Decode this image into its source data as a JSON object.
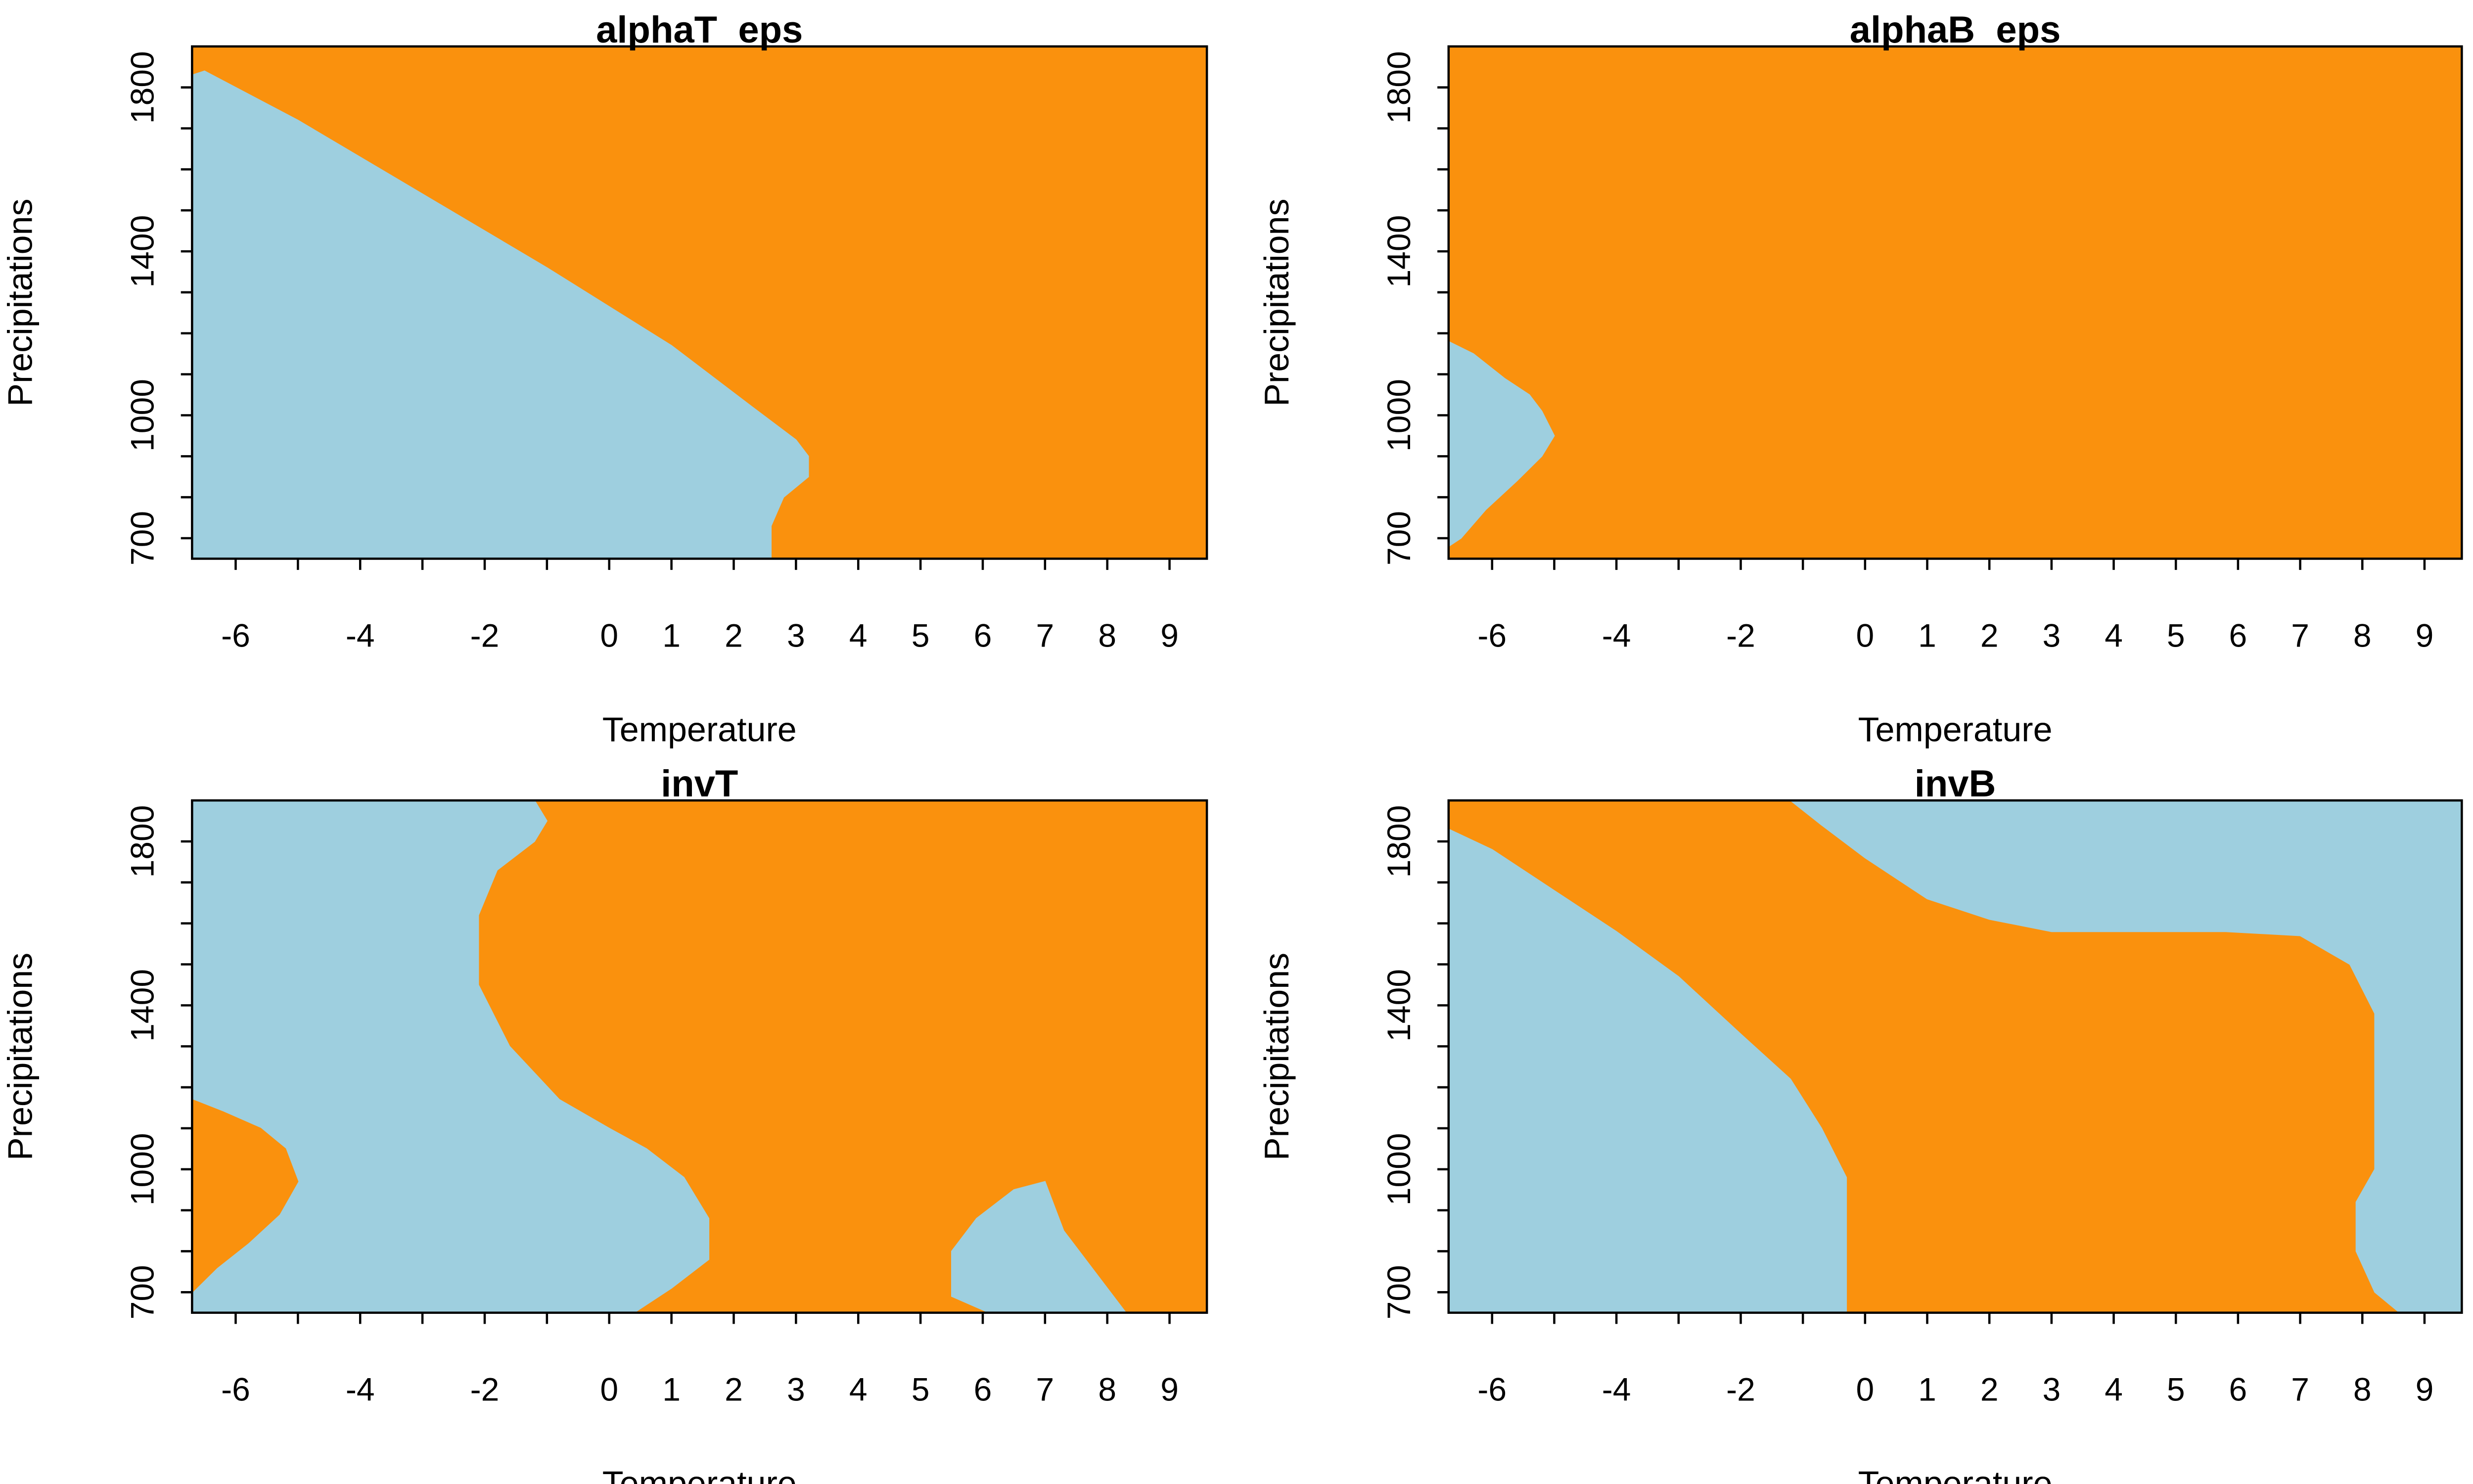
{
  "colors": {
    "light": "#9ecfdf",
    "dark": "#fa910d",
    "axis": "#000000",
    "background": "#ffffff"
  },
  "chart_data": [
    {
      "type": "heatmap",
      "title": "alphaT_eps",
      "xlabel": "Temperature",
      "ylabel": "Precipitations",
      "xlim": [
        -6.7,
        9.6
      ],
      "ylim": [
        650,
        1900
      ],
      "xticks": [
        -6,
        -5,
        -4,
        -3,
        -2,
        -1,
        0,
        1,
        2,
        3,
        4,
        5,
        6,
        7,
        8,
        9
      ],
      "xtick_labels": [
        "-6",
        "",
        "-4",
        "",
        "-2",
        "",
        "0",
        "1",
        "2",
        "3",
        "4",
        "5",
        "6",
        "7",
        "8",
        "9"
      ],
      "yticks": [
        700,
        800,
        900,
        1000,
        1100,
        1200,
        1300,
        1400,
        1500,
        1600,
        1700,
        1800
      ],
      "ytick_labels": [
        "700",
        "",
        "",
        "1000",
        "",
        "",
        "",
        "1400",
        "",
        "",
        "",
        "1800"
      ],
      "class_colors": [
        "#9ecfdf",
        "#fa910d"
      ],
      "regions": [
        {
          "class": 0,
          "polygon": [
            [
              -6.7,
              650
            ],
            [
              -6.7,
              1830
            ],
            [
              -6.5,
              1840
            ],
            [
              -5.0,
              1720
            ],
            [
              -3.0,
              1540
            ],
            [
              -1.0,
              1360
            ],
            [
              1.0,
              1170
            ],
            [
              2.3,
              1020
            ],
            [
              3.0,
              940
            ],
            [
              3.2,
              900
            ],
            [
              3.2,
              850
            ],
            [
              2.8,
              800
            ],
            [
              2.6,
              730
            ],
            [
              2.6,
              650
            ]
          ]
        }
      ]
    },
    {
      "type": "heatmap",
      "title": "alphaB_eps",
      "xlabel": "Temperature",
      "ylabel": "Precipitations",
      "xlim": [
        -6.7,
        9.6
      ],
      "ylim": [
        650,
        1900
      ],
      "xticks": [
        -6,
        -5,
        -4,
        -3,
        -2,
        -1,
        0,
        1,
        2,
        3,
        4,
        5,
        6,
        7,
        8,
        9
      ],
      "xtick_labels": [
        "-6",
        "",
        "-4",
        "",
        "-2",
        "",
        "0",
        "1",
        "2",
        "3",
        "4",
        "5",
        "6",
        "7",
        "8",
        "9"
      ],
      "yticks": [
        700,
        800,
        900,
        1000,
        1100,
        1200,
        1300,
        1400,
        1500,
        1600,
        1700,
        1800
      ],
      "ytick_labels": [
        "700",
        "",
        "",
        "1000",
        "",
        "",
        "",
        "1400",
        "",
        "",
        "",
        "1800"
      ],
      "class_colors": [
        "#9ecfdf",
        "#fa910d"
      ],
      "regions": [
        {
          "class": 0,
          "polygon": [
            [
              -6.7,
              680
            ],
            [
              -6.7,
              1180
            ],
            [
              -6.3,
              1150
            ],
            [
              -5.8,
              1090
            ],
            [
              -5.4,
              1050
            ],
            [
              -5.2,
              1010
            ],
            [
              -5.0,
              950
            ],
            [
              -5.2,
              900
            ],
            [
              -5.6,
              840
            ],
            [
              -6.1,
              770
            ],
            [
              -6.5,
              700
            ]
          ]
        }
      ]
    },
    {
      "type": "heatmap",
      "title": "invT",
      "xlabel": "Temperature",
      "ylabel": "Precipitations",
      "xlim": [
        -6.7,
        9.6
      ],
      "ylim": [
        650,
        1900
      ],
      "xticks": [
        -6,
        -5,
        -4,
        -3,
        -2,
        -1,
        0,
        1,
        2,
        3,
        4,
        5,
        6,
        7,
        8,
        9
      ],
      "xtick_labels": [
        "-6",
        "",
        "-4",
        "",
        "-2",
        "",
        "0",
        "1",
        "2",
        "3",
        "4",
        "5",
        "6",
        "7",
        "8",
        "9"
      ],
      "yticks": [
        700,
        800,
        900,
        1000,
        1100,
        1200,
        1300,
        1400,
        1500,
        1600,
        1700,
        1800
      ],
      "ytick_labels": [
        "700",
        "",
        "",
        "1000",
        "",
        "",
        "",
        "1400",
        "",
        "",
        "",
        "1800"
      ],
      "class_colors": [
        "#9ecfdf",
        "#fa910d"
      ],
      "regions": [
        {
          "class": 0,
          "polygon": [
            [
              -6.7,
              650
            ],
            [
              -6.7,
              1900
            ],
            [
              -1.2,
              1900
            ],
            [
              -1.0,
              1850
            ],
            [
              -1.2,
              1800
            ],
            [
              -1.8,
              1730
            ],
            [
              -2.1,
              1620
            ],
            [
              -2.1,
              1450
            ],
            [
              -1.6,
              1300
            ],
            [
              -0.8,
              1170
            ],
            [
              0.0,
              1100
            ],
            [
              0.6,
              1050
            ],
            [
              1.2,
              980
            ],
            [
              1.6,
              880
            ],
            [
              1.6,
              780
            ],
            [
              1.0,
              710
            ],
            [
              0.4,
              650
            ]
          ]
        },
        {
          "class": 1,
          "polygon": [
            [
              -6.7,
              700
            ],
            [
              -6.7,
              1170
            ],
            [
              -6.2,
              1140
            ],
            [
              -5.6,
              1100
            ],
            [
              -5.2,
              1050
            ],
            [
              -5.0,
              970
            ],
            [
              -5.3,
              890
            ],
            [
              -5.8,
              820
            ],
            [
              -6.3,
              760
            ]
          ]
        },
        {
          "class": 0,
          "polygon": [
            [
              5.5,
              690
            ],
            [
              5.5,
              800
            ],
            [
              5.9,
              880
            ],
            [
              6.5,
              950
            ],
            [
              7.0,
              970
            ],
            [
              7.1,
              930
            ],
            [
              7.3,
              850
            ],
            [
              7.7,
              770
            ],
            [
              8.0,
              710
            ],
            [
              8.3,
              650
            ],
            [
              6.1,
              650
            ]
          ]
        }
      ]
    },
    {
      "type": "heatmap",
      "title": "invB",
      "xlabel": "Temperature",
      "ylabel": "Precipitations",
      "xlim": [
        -6.7,
        9.6
      ],
      "ylim": [
        650,
        1900
      ],
      "xticks": [
        -6,
        -5,
        -4,
        -3,
        -2,
        -1,
        0,
        1,
        2,
        3,
        4,
        5,
        6,
        7,
        8,
        9
      ],
      "xtick_labels": [
        "-6",
        "",
        "-4",
        "",
        "-2",
        "",
        "0",
        "1",
        "2",
        "3",
        "4",
        "5",
        "6",
        "7",
        "8",
        "9"
      ],
      "yticks": [
        700,
        800,
        900,
        1000,
        1100,
        1200,
        1300,
        1400,
        1500,
        1600,
        1700,
        1800
      ],
      "ytick_labels": [
        "700",
        "",
        "",
        "1000",
        "",
        "",
        "",
        "1400",
        "",
        "",
        "",
        "1800"
      ],
      "class_colors": [
        "#9ecfdf",
        "#fa910d"
      ],
      "regions": [
        {
          "class": 0,
          "polygon": [
            [
              -6.7,
              650
            ],
            [
              -6.7,
              1830
            ],
            [
              -6.0,
              1780
            ],
            [
              -5.0,
              1680
            ],
            [
              -4.0,
              1580
            ],
            [
              -3.0,
              1470
            ],
            [
              -2.0,
              1330
            ],
            [
              -1.2,
              1220
            ],
            [
              -0.7,
              1100
            ],
            [
              -0.3,
              980
            ],
            [
              -0.3,
              650
            ]
          ]
        },
        {
          "class": 0,
          "polygon": [
            [
              -1.2,
              1900
            ],
            [
              9.6,
              1900
            ],
            [
              9.6,
              650
            ],
            [
              8.6,
              650
            ],
            [
              8.2,
              700
            ],
            [
              7.9,
              800
            ],
            [
              7.9,
              920
            ],
            [
              8.2,
              1000
            ],
            [
              8.2,
              1380
            ],
            [
              7.8,
              1500
            ],
            [
              7.0,
              1570
            ],
            [
              5.8,
              1580
            ],
            [
              3.0,
              1580
            ],
            [
              2.0,
              1610
            ],
            [
              1.0,
              1660
            ],
            [
              0.0,
              1760
            ],
            [
              -0.7,
              1840
            ]
          ]
        }
      ]
    }
  ]
}
